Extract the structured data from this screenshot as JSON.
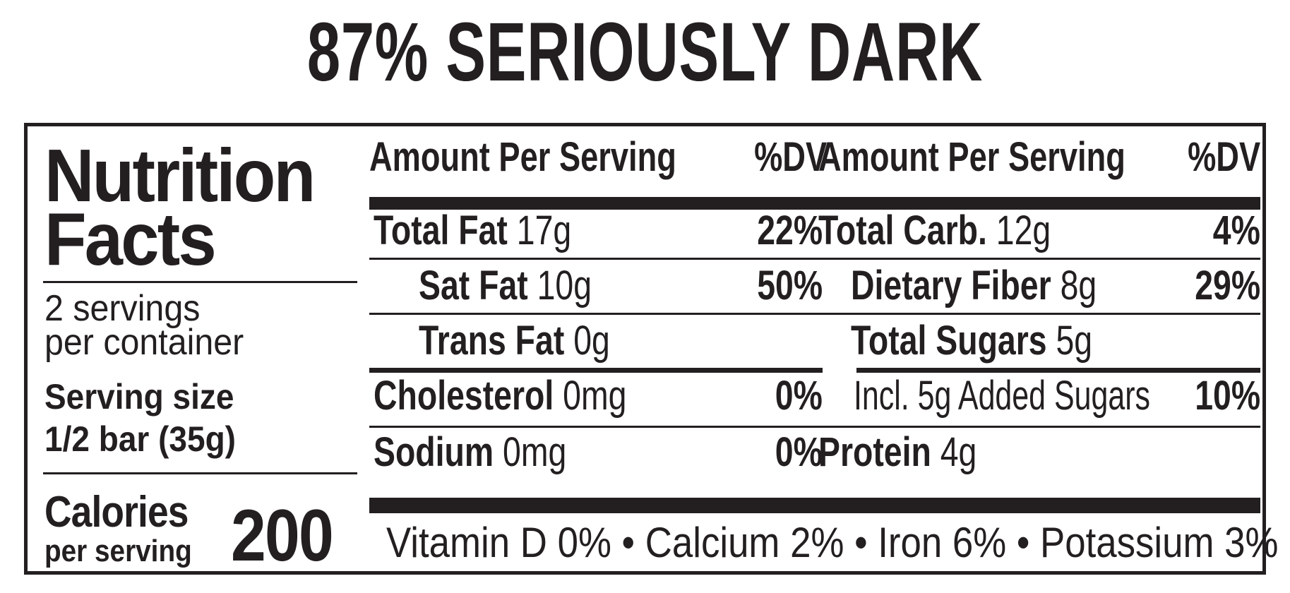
{
  "product": {
    "title": "87% SERIOUSLY DARK"
  },
  "label": {
    "title_line1": "Nutrition",
    "title_line2": "Facts",
    "servings_line1": "2 servings",
    "servings_line2": "per container",
    "serving_size_label": "Serving size",
    "serving_size_value": "1/2 bar (35g)",
    "calories_label": "Calories",
    "calories_sublabel": "per serving",
    "calories_value": "200"
  },
  "left_column": {
    "header": {
      "amount": "Amount Per Serving",
      "dv": "%DV"
    },
    "rows": [
      {
        "nutrient": "Total Fat",
        "amount": "17g",
        "dv": "22%"
      },
      {
        "nutrient": "Sat Fat",
        "amount": "10g",
        "dv": "50%"
      },
      {
        "nutrient": "Trans Fat",
        "amount": "0g",
        "dv": ""
      },
      {
        "nutrient": "Cholesterol",
        "amount": "0mg",
        "dv": "0%"
      },
      {
        "nutrient": "Sodium",
        "amount": "0mg",
        "dv": "0%"
      }
    ]
  },
  "right_column": {
    "header": {
      "amount": "Amount Per Serving",
      "dv": "%DV"
    },
    "rows": [
      {
        "nutrient": "Total Carb.",
        "amount": "12g",
        "dv": "4%"
      },
      {
        "nutrient": "Dietary Fiber",
        "amount": "8g",
        "dv": "29%"
      },
      {
        "nutrient": "Total Sugars",
        "amount": "5g",
        "dv": ""
      },
      {
        "nutrient": "",
        "amount": "Incl. 5g Added Sugars",
        "dv": "10%"
      },
      {
        "nutrient": "Protein",
        "amount": "4g",
        "dv": ""
      }
    ]
  },
  "vitamins_line": "Vitamin D 0% • Calcium 2% • Iron 6% • Potassium 3%"
}
